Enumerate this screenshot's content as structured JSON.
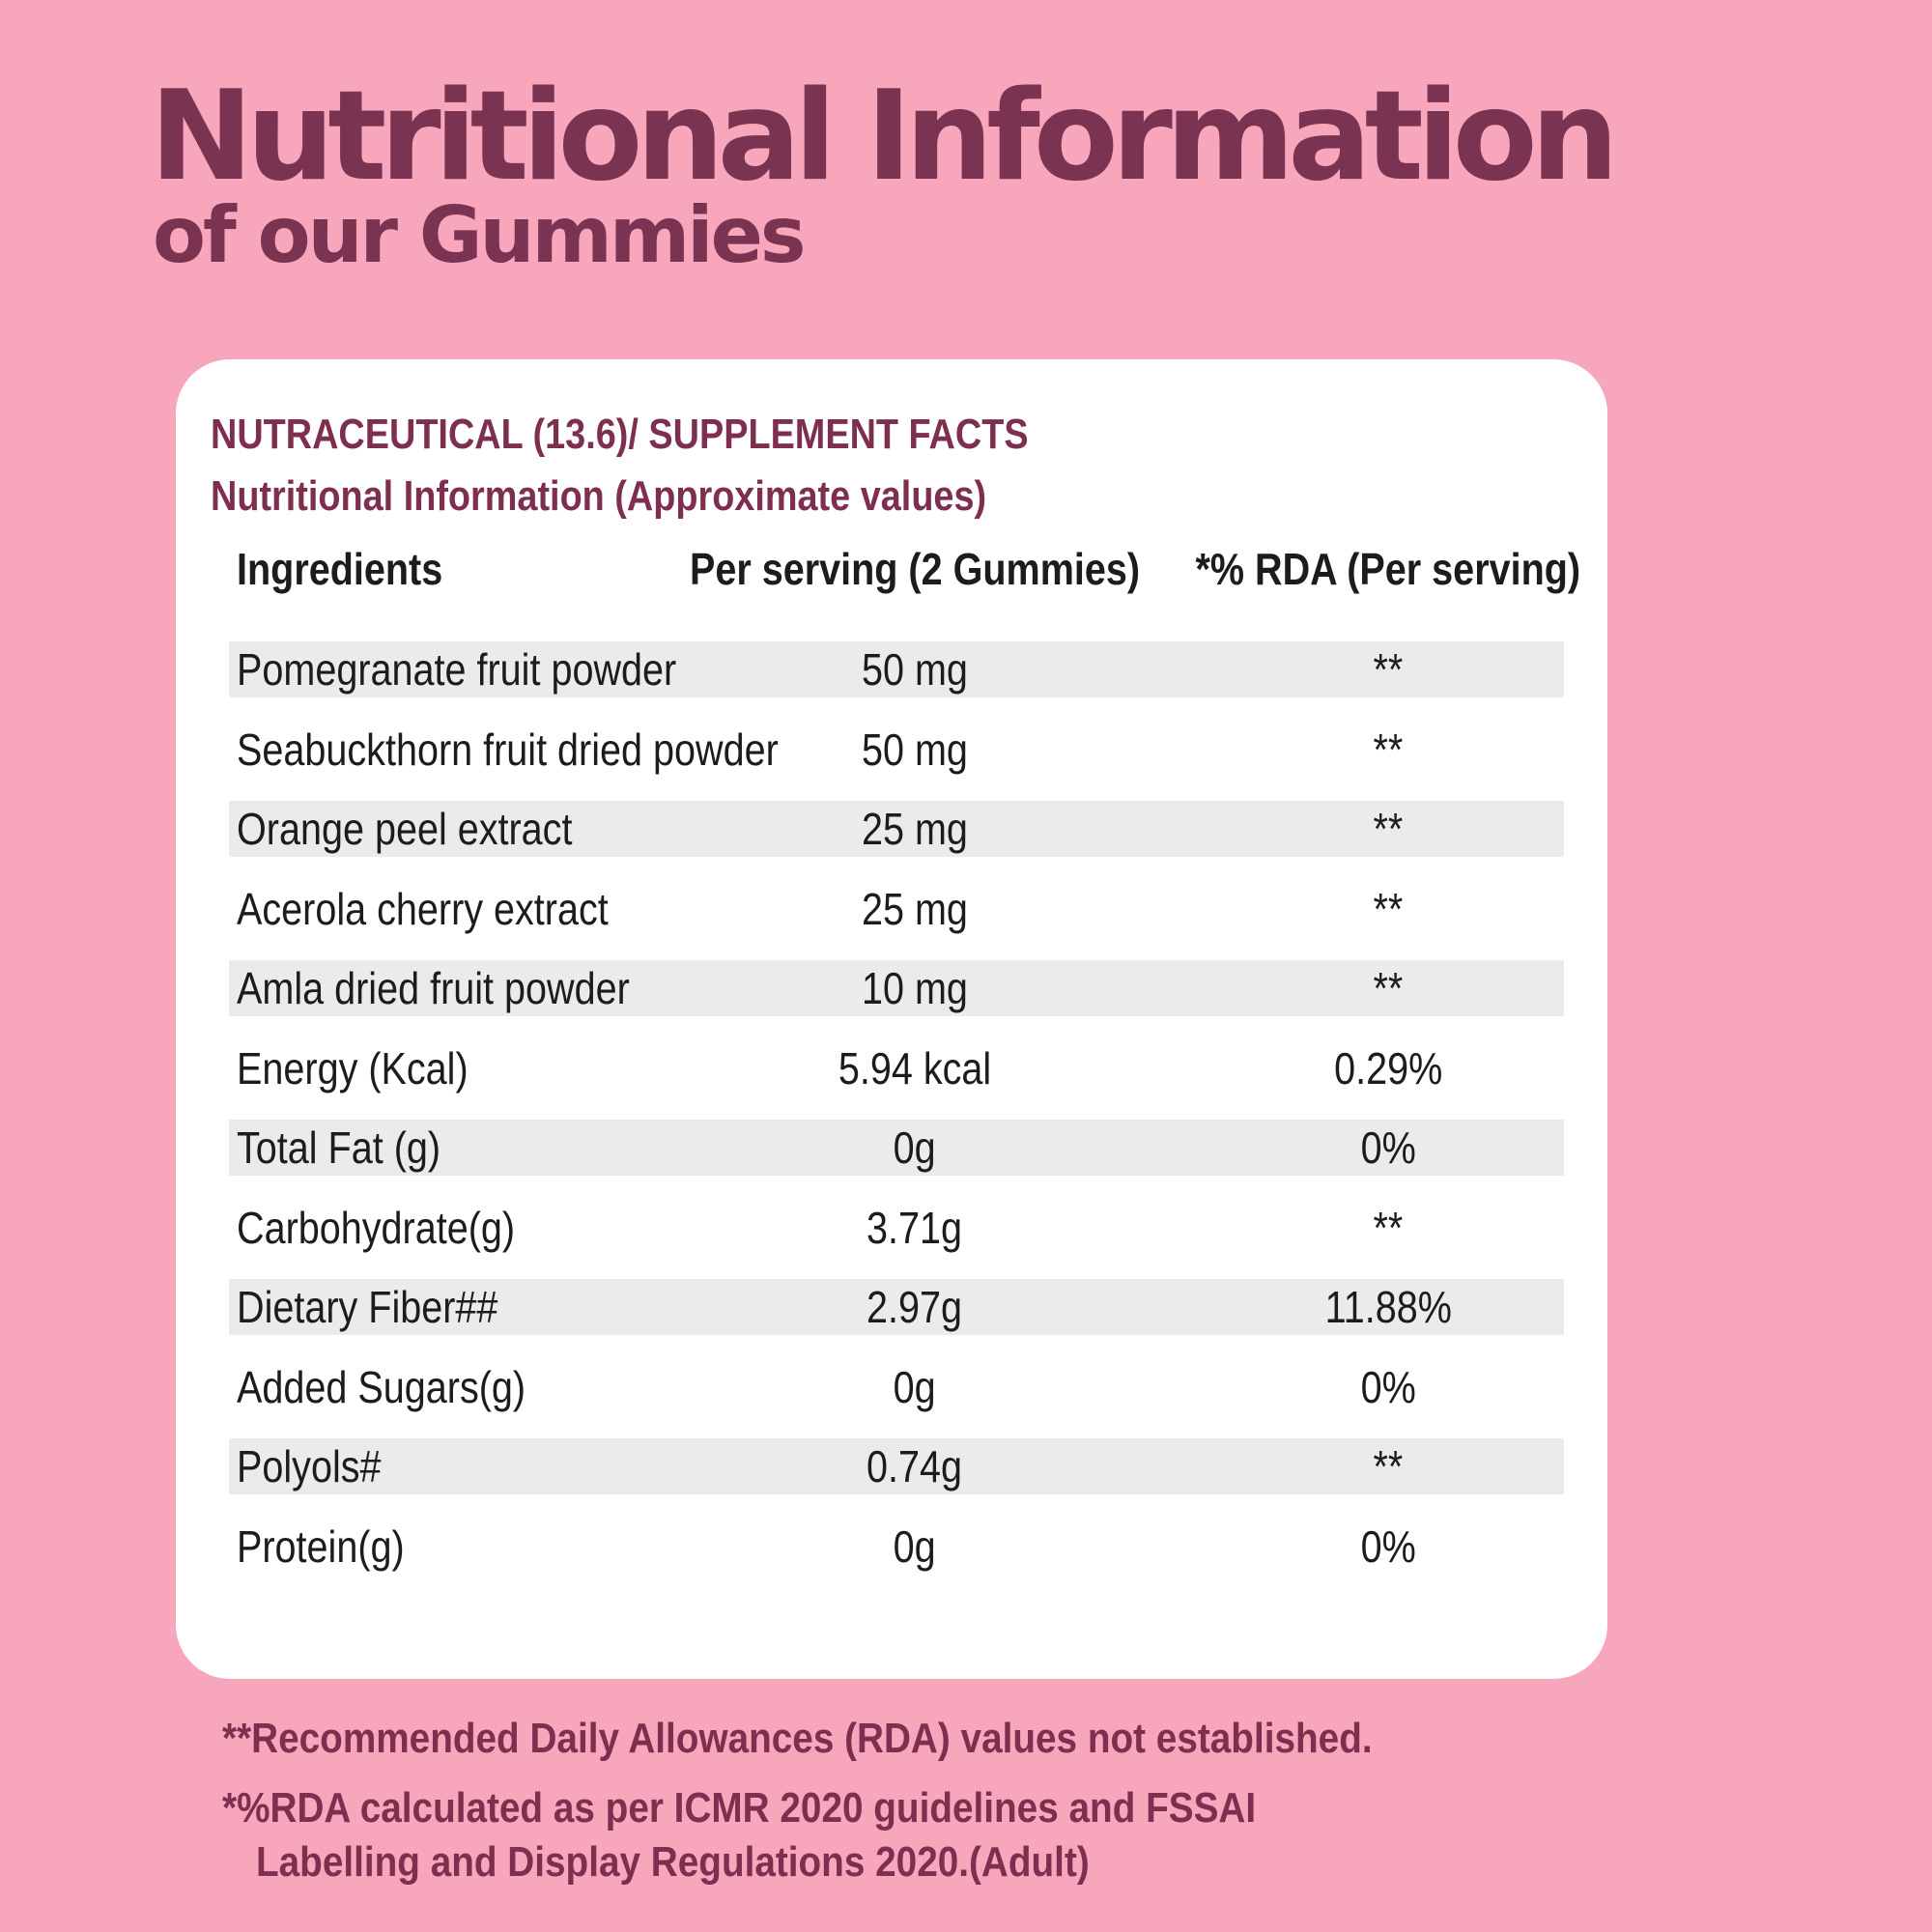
{
  "hero": {
    "title": "Nutritional Information",
    "subtitle": "of our Gummies"
  },
  "facts": {
    "heading": "NUTRACEUTICAL (13.6)/ SUPPLEMENT FACTS",
    "subheading": "Nutritional Information (Approximate values)",
    "columns": {
      "ingredient": "Ingredients",
      "amount": "Per serving (2 Gummies)",
      "rda": "*% RDA (Per serving)"
    },
    "rows": [
      {
        "name": "Pomegranate fruit powder",
        "amount": "50 mg",
        "rda": "**"
      },
      {
        "name": "Seabuckthorn fruit dried powder",
        "amount": "50 mg",
        "rda": "**"
      },
      {
        "name": "Orange peel extract",
        "amount": "25 mg",
        "rda": "**"
      },
      {
        "name": "Acerola cherry extract",
        "amount": "25 mg",
        "rda": "**"
      },
      {
        "name": "Amla dried fruit powder",
        "amount": "10 mg",
        "rda": "**"
      },
      {
        "name": "Energy (Kcal)",
        "amount": "5.94 kcal",
        "rda": "0.29%"
      },
      {
        "name": "Total Fat (g)",
        "amount": "0g",
        "rda": "0%"
      },
      {
        "name": "Carbohydrate(g)",
        "amount": "3.71g",
        "rda": "**"
      },
      {
        "name": "Dietary Fiber##",
        "amount": "2.97g",
        "rda": "11.88%"
      },
      {
        "name": "Added Sugars(g)",
        "amount": "0g",
        "rda": "0%"
      },
      {
        "name": "Polyols#",
        "amount": "0.74g",
        "rda": "**"
      },
      {
        "name": "Protein(g)",
        "amount": "0g",
        "rda": "0%"
      }
    ]
  },
  "footnotes": {
    "rda_not_established": "**Recommended Daily Allowances (RDA) values not established.",
    "rda_calc_line1": "*%RDA calculated as per ICMR 2020 guidelines and FSSAI",
    "rda_calc_line2": "Labelling and Display Regulations 2020.(Adult)"
  },
  "colors": {
    "background": "#f7a6bc",
    "title": "#7a3350",
    "heading": "#7e2e4e",
    "row_shade": "#ebebeb"
  }
}
